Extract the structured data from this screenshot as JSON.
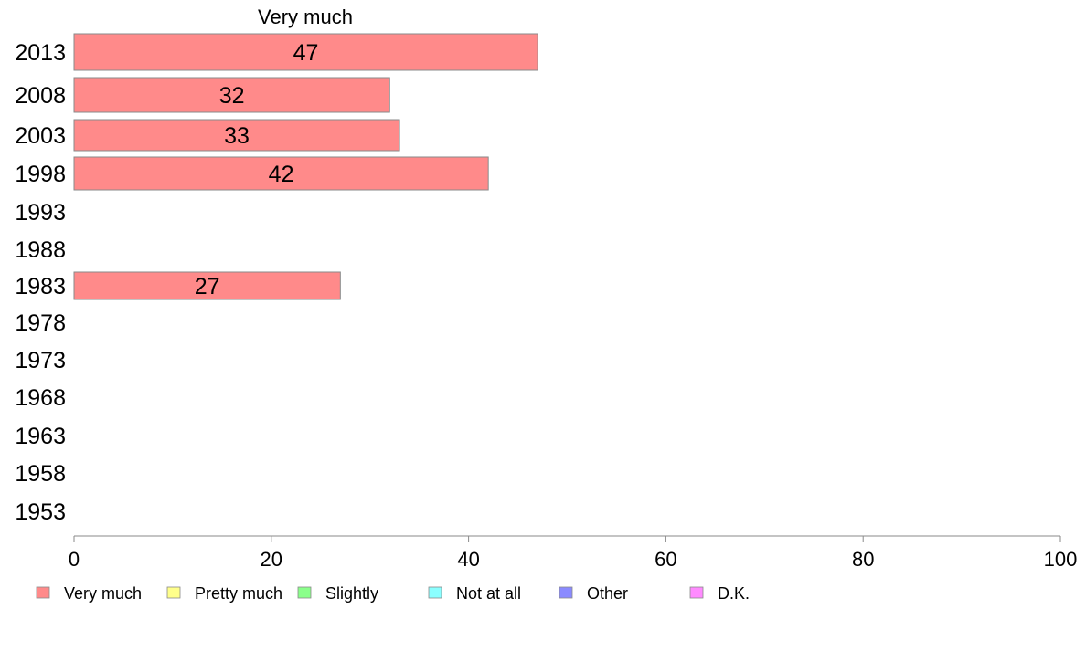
{
  "chart_data": {
    "type": "bar",
    "orientation": "horizontal",
    "series_title": "Very much",
    "categories": [
      "2013",
      "2008",
      "2003",
      "1998",
      "1993",
      "1988",
      "1983",
      "1978",
      "1973",
      "1968",
      "1963",
      "1958",
      "1953"
    ],
    "series": [
      {
        "name": "Very much",
        "values": [
          47,
          32,
          33,
          42,
          null,
          null,
          27,
          null,
          null,
          null,
          null,
          null,
          null
        ],
        "value_labels": [
          "47",
          "32",
          "33",
          "42",
          "",
          "",
          "27",
          "",
          "",
          "",
          "",
          "",
          ""
        ]
      }
    ],
    "xlim": [
      0,
      100
    ],
    "x_ticks": [
      0,
      20,
      40,
      60,
      80,
      100
    ],
    "x_tick_labels": [
      "0",
      "20",
      "40",
      "60",
      "80",
      "100"
    ],
    "grid": false,
    "legend": {
      "placement": "bottom",
      "entries": [
        {
          "label": "Very much",
          "color": "#ff8a8a"
        },
        {
          "label": "Pretty much",
          "color": "#ffff8a"
        },
        {
          "label": "Slightly",
          "color": "#8aff8a"
        },
        {
          "label": "Not at all",
          "color": "#8affff"
        },
        {
          "label": "Other",
          "color": "#8a8aff"
        },
        {
          "label": "D.K.",
          "color": "#ff8aff"
        }
      ]
    },
    "colors": {
      "bar_fill": "#ff8a8a",
      "bar_stroke": "#8a8a8a",
      "axis": "#8a8a8a"
    }
  }
}
